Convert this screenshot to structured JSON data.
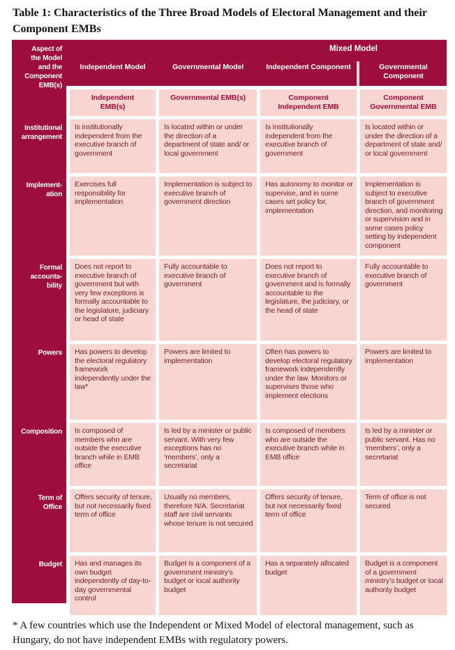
{
  "title": "Table 1: Characteristics of the Three Broad Models of Electoral Management and their Component EMBs",
  "colors": {
    "header_crimson": "#9e0e3c",
    "cell_pink": "#f8d5d1",
    "cell_text_maroon": "#6e1e2d"
  },
  "table": {
    "corner_header": "Aspect of the Model and the Component EMB(s)",
    "mixed_model_label": "Mixed Model",
    "model_headers": [
      "Independent Model",
      "Governmental Model",
      "Independent Component",
      "Governmental Component"
    ],
    "emb_headers": [
      "Independent EMB(s)",
      "Governmental EMB(s)",
      "Component Independent EMB",
      "Component Governmental EMB"
    ],
    "rows": [
      {
        "aspect": "Institutional arrangement",
        "cells": [
          "Is institutionally independent from the executive branch of government",
          "Is located within or under the direction of a department of state and/ or local government",
          "Is institutionally independent from the executive branch of government",
          "Is located within or under the direction of a department of state and/ or local government"
        ]
      },
      {
        "aspect": "Implement-ation",
        "cells": [
          "Exercises full responsibility for implementation",
          "Implementation is subject to executive branch of government direction",
          "Has autonomy to monitor or supervise, and in some cases set policy for, implementation",
          "Implementation is subject to executive branch of government direction, and monitoring or supervision and in some cases policy setting by independent component"
        ]
      },
      {
        "aspect": "Formal accounta-bility",
        "cells": [
          "Does not report to executive branch of government but with very few exceptions is formally accountable to the legislature, judiciary or head of state",
          "Fully accountable to executive branch of government",
          "Does not report to executive branch of government and is formally accountable to the legislature, the judiciary, or the head of state",
          "Fully accountable to executive branch of government"
        ]
      },
      {
        "aspect": "Powers",
        "cells": [
          "Has powers to develop the electoral regulatory framework independently under the law*",
          "Powers are limited to implementation",
          "Often has powers to develop electoral regulatory framework independently under the law. Monitors or supervises those who implement elections",
          "Powers are limited to implementation"
        ]
      },
      {
        "aspect": "Composition",
        "cells": [
          "Is composed of members who are outside the executive branch while in EMB office",
          "Is led by a minister or public servant. With very few exceptions has no ‘members’, only a secretariat",
          "Is composed of members who are outside the executive branch while in EMB office",
          "Is led by a minister or public servant. Has no ‘members’, only a secretariat"
        ]
      },
      {
        "aspect": "Term of Office",
        "cells": [
          "Offers security of tenure, but not necessarily fixed term of office",
          "Usually no members, therefore N/A. Secretariat staff are civil servants whose tenure is not secured",
          "Offers security of tenure, but not necessarily fixed term of office",
          "Term of office is not secured"
        ]
      },
      {
        "aspect": "Budget",
        "cells": [
          "Has and manages its own budget independently of day-to-day governmental control",
          "Budget is a component of a government ministry’s budget or local authority budget",
          "Has a separately allocated budget",
          "Budget is a component of a government ministry’s budget or local authority budget"
        ]
      }
    ]
  },
  "footnote": "* A few countries which use the Independent or Mixed Model of electoral management, such as Hungary, do not have independent EMBs with regulatory powers."
}
